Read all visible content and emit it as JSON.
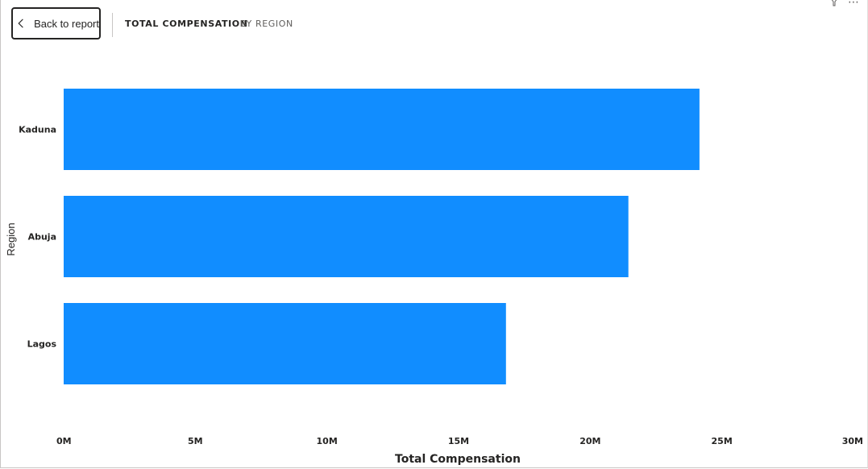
{
  "header": {
    "back_label": "Back to report",
    "breadcrumb": [
      "TOTAL COMPENSATION",
      "BY REGION"
    ]
  },
  "toolbar": {
    "filter_icon": "filter-icon",
    "more_icon": "more-options-icon",
    "more_glyph": "⋯"
  },
  "colors": {
    "bar": "#118dff",
    "text": "#252423"
  },
  "chart_data": {
    "type": "bar",
    "orientation": "horizontal",
    "categories": [
      "Kaduna",
      "Abuja",
      "Lagos"
    ],
    "values": [
      24.15,
      21.45,
      16.8
    ],
    "value_unit": "M",
    "xlabel": "Total Compensation",
    "ylabel": "Region",
    "xlim": [
      0,
      30
    ],
    "x_ticks": [
      "0M",
      "5M",
      "10M",
      "15M",
      "20M",
      "25M",
      "30M"
    ],
    "grid": false,
    "legend": "none"
  }
}
